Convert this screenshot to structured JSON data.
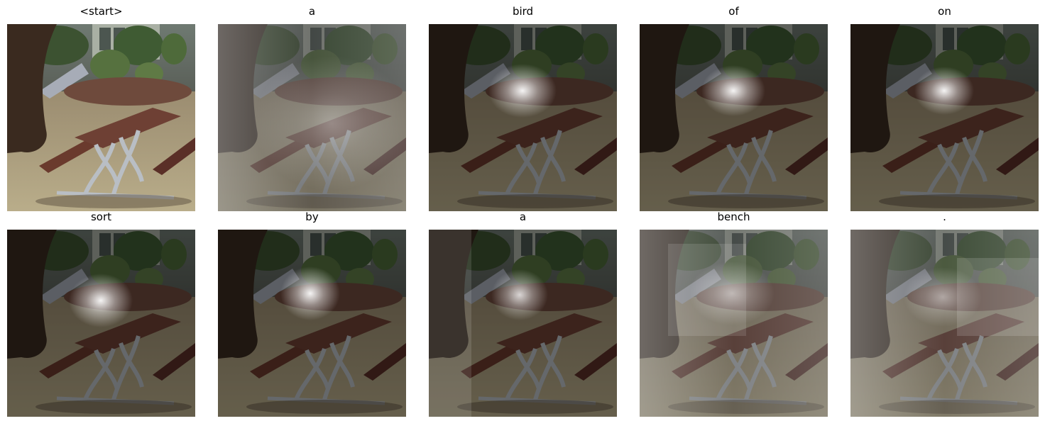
{
  "figure": {
    "panels": [
      {
        "word": "<start>",
        "attention": "none"
      },
      {
        "word": "a",
        "attention": "diffuse"
      },
      {
        "word": "bird",
        "attention": "focused"
      },
      {
        "word": "of",
        "attention": "focused"
      },
      {
        "word": "on",
        "attention": "focused"
      },
      {
        "word": "sort",
        "attention": "focused"
      },
      {
        "word": "by",
        "attention": "focused"
      },
      {
        "word": "a",
        "attention": "focused"
      },
      {
        "word": "bench",
        "attention": "diffuse"
      },
      {
        "word": ".",
        "attention": "diffuse"
      }
    ]
  }
}
